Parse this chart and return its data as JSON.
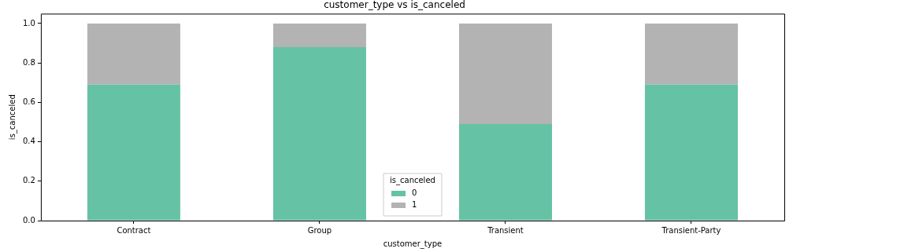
{
  "chart_data": {
    "type": "bar",
    "title": "customer_type vs is_canceled",
    "xlabel": "customer_type",
    "ylabel": "is_canceled",
    "legend_title": "is_canceled",
    "categories": [
      "Contract",
      "Group",
      "Transient",
      "Transient-Party"
    ],
    "stacked": true,
    "legend": "bottom",
    "grid": false,
    "ylim": [
      0,
      1.05
    ],
    "yticks": [
      {
        "value": 0,
        "label": "0.0"
      },
      {
        "value": 0.2,
        "label": "0.2"
      },
      {
        "value": 0.4,
        "label": "0.4"
      },
      {
        "value": 0.6,
        "label": "0.6"
      },
      {
        "value": 0.8,
        "label": "0.8"
      },
      {
        "value": 1,
        "label": "1.0"
      }
    ],
    "series": [
      {
        "name": "0",
        "color": "#66c2a5",
        "values": [
          0.69,
          0.88,
          0.49,
          0.69
        ]
      },
      {
        "name": "1",
        "color": "#b3b3b3",
        "values": [
          0.31,
          0.12,
          0.51,
          0.31
        ]
      }
    ]
  }
}
